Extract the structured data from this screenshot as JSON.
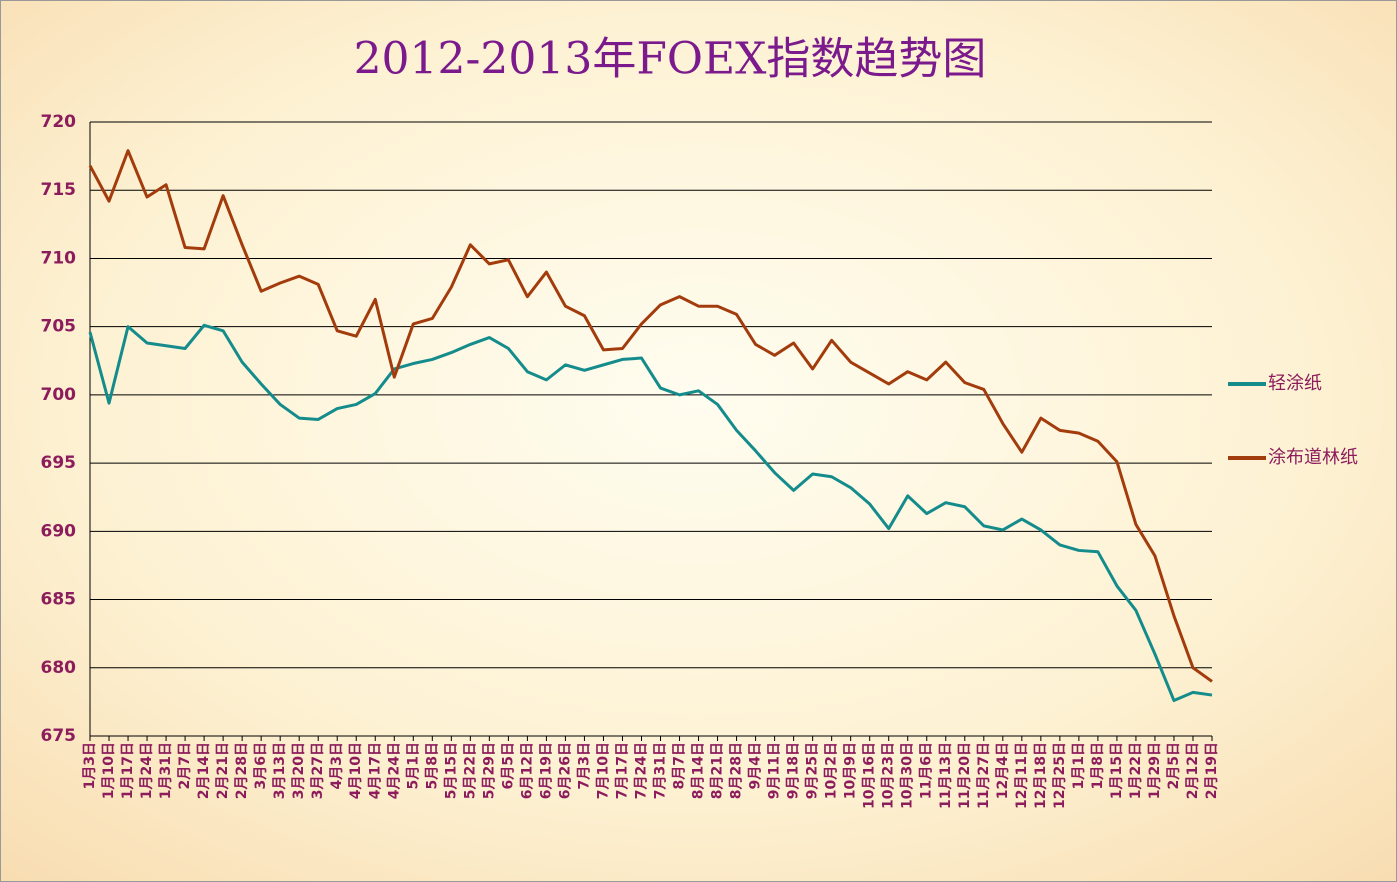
{
  "chart_data": {
    "type": "line",
    "title": "2012-2013年FOEX指数趋势图",
    "categories": [
      "1月3日",
      "1月10日",
      "1月17日",
      "1月24日",
      "1月31日",
      "2月7日",
      "2月14日",
      "2月21日",
      "2月28日",
      "3月6日",
      "3月13日",
      "3月20日",
      "3月27日",
      "4月3日",
      "4月10日",
      "4月17日",
      "4月24日",
      "5月1日",
      "5月8日",
      "5月15日",
      "5月22日",
      "5月29日",
      "6月5日",
      "6月12日",
      "6月19日",
      "6月26日",
      "7月3日",
      "7月10日",
      "7月17日",
      "7月24日",
      "7月31日",
      "8月7日",
      "8月14日",
      "8月21日",
      "8月28日",
      "9月4日",
      "9月11日",
      "9月18日",
      "9月25日",
      "10月2日",
      "10月9日",
      "10月16日",
      "10月23日",
      "10月30日",
      "11月6日",
      "11月13日",
      "11月20日",
      "11月27日",
      "12月4日",
      "12月11日",
      "12月18日",
      "12月25日",
      "1月1日",
      "1月8日",
      "1月15日",
      "1月22日",
      "1月29日",
      "2月5日",
      "2月12日",
      "2月19日"
    ],
    "series": [
      {
        "name": "轻涂纸",
        "color": "#148c8c",
        "values": [
          704.6,
          699.4,
          705.0,
          703.8,
          703.6,
          703.4,
          705.1,
          704.7,
          702.4,
          700.8,
          699.3,
          698.3,
          698.2,
          699.0,
          699.3,
          700.1,
          701.9,
          702.3,
          702.6,
          703.1,
          703.7,
          704.2,
          703.4,
          701.7,
          701.1,
          702.2,
          701.8,
          702.2,
          702.6,
          702.7,
          700.5,
          700.0,
          700.3,
          699.3,
          697.4,
          695.9,
          694.3,
          693.0,
          694.2,
          694.0,
          693.2,
          692.0,
          690.2,
          692.6,
          691.3,
          692.1,
          691.8,
          690.4,
          690.1,
          690.9,
          690.1,
          689.0,
          688.6,
          688.5,
          686.0,
          684.2,
          681.0,
          677.6,
          678.2,
          678.0
        ]
      },
      {
        "name": "涂布道林纸",
        "color": "#a33c0c",
        "values": [
          716.8,
          714.2,
          717.9,
          714.5,
          715.4,
          710.8,
          710.7,
          714.6,
          711.0,
          707.6,
          708.2,
          708.7,
          708.1,
          704.7,
          704.3,
          707.0,
          701.3,
          705.2,
          705.6,
          707.9,
          711.0,
          709.6,
          709.9,
          707.2,
          709.0,
          706.5,
          705.8,
          703.3,
          703.4,
          705.2,
          706.6,
          707.2,
          706.5,
          706.5,
          705.9,
          703.7,
          702.9,
          703.8,
          701.9,
          704.0,
          702.4,
          701.6,
          700.8,
          701.7,
          701.1,
          702.4,
          700.9,
          700.4,
          697.9,
          695.8,
          698.3,
          697.4,
          697.2,
          696.6,
          695.1,
          690.5,
          688.2,
          683.8,
          680.0,
          679.0
        ]
      }
    ],
    "ylim": [
      675,
      720
    ],
    "yticks": [
      675,
      680,
      685,
      690,
      695,
      700,
      705,
      710,
      715,
      720
    ],
    "grid": true,
    "legend": "right"
  }
}
